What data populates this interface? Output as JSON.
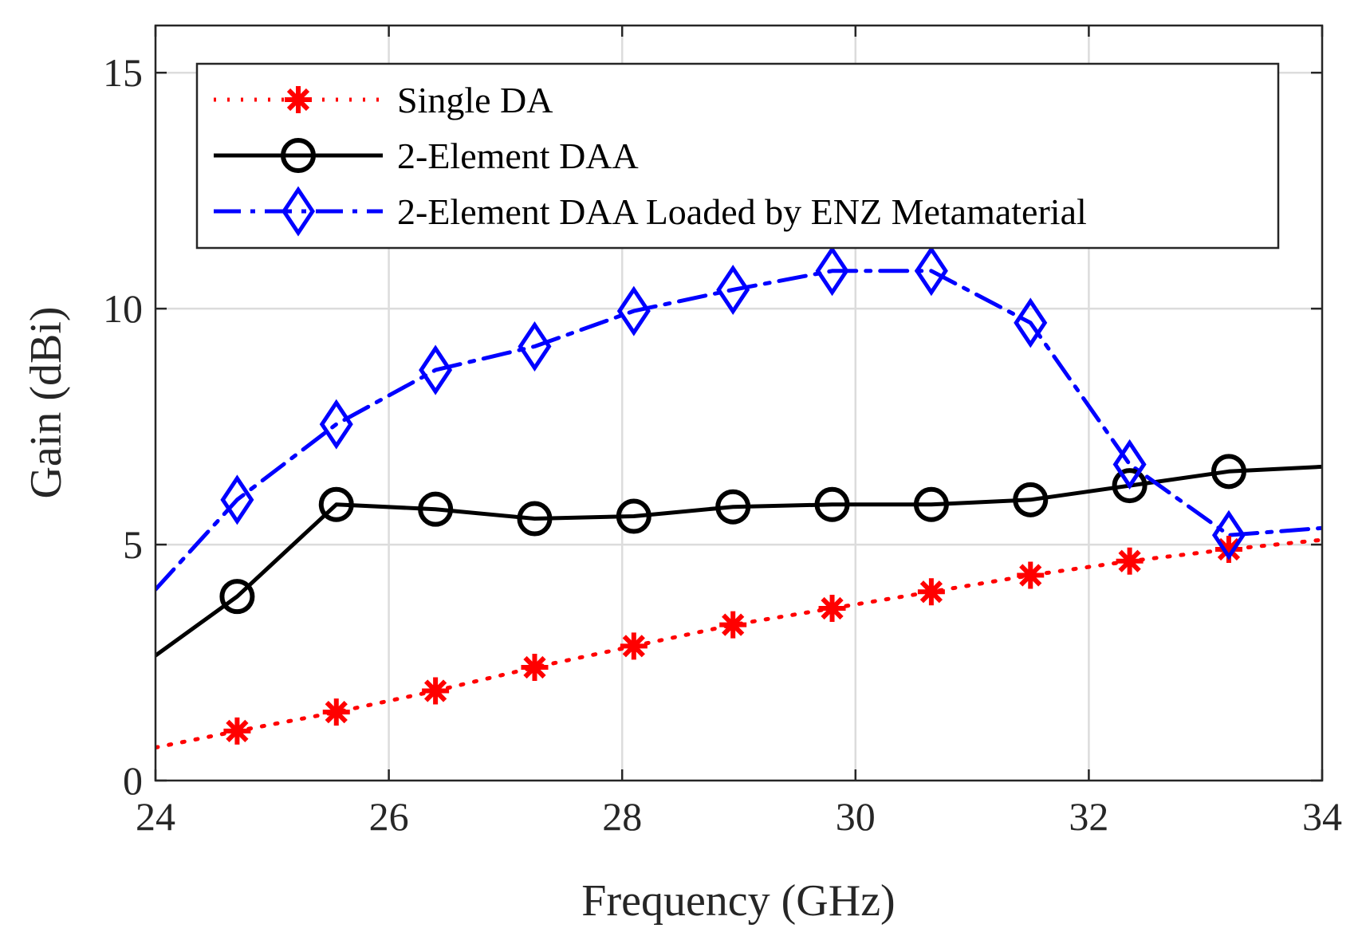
{
  "chart_data": {
    "type": "line",
    "xlabel": "Frequency (GHz)",
    "ylabel": "Gain (dBi)",
    "xlim": [
      24,
      34
    ],
    "ylim": [
      0,
      16
    ],
    "xticks": [
      24,
      26,
      28,
      30,
      32,
      34
    ],
    "yticks": [
      0,
      5,
      10,
      15
    ],
    "grid": true,
    "legend_position": "top",
    "series": [
      {
        "name": "Single DA",
        "color": "#ff0000",
        "line_style": "dotted",
        "marker": "asterisk",
        "x": [
          24,
          24.7,
          25.55,
          26.4,
          27.25,
          28.1,
          28.95,
          29.8,
          30.65,
          31.5,
          32.35,
          33.2,
          34
        ],
        "y": [
          0.7,
          1.05,
          1.45,
          1.9,
          2.4,
          2.85,
          3.3,
          3.65,
          4.0,
          4.35,
          4.65,
          4.9,
          5.1
        ]
      },
      {
        "name": "2-Element DAA",
        "color": "#000000",
        "line_style": "solid",
        "marker": "circle",
        "x": [
          24,
          24.7,
          25.55,
          26.4,
          27.25,
          28.1,
          28.95,
          29.8,
          30.65,
          31.5,
          32.35,
          33.2,
          34
        ],
        "y": [
          2.65,
          3.9,
          5.85,
          5.75,
          5.55,
          5.6,
          5.8,
          5.85,
          5.85,
          5.95,
          6.25,
          6.55,
          6.65
        ]
      },
      {
        "name": "2-Element DAA Loaded by ENZ Metamaterial",
        "color": "#0000ff",
        "line_style": "dashdot",
        "marker": "diamond",
        "x": [
          24,
          24.7,
          25.55,
          26.4,
          27.25,
          28.1,
          28.95,
          29.8,
          30.65,
          31.5,
          32.35,
          33.2,
          34
        ],
        "y": [
          4.05,
          5.95,
          7.55,
          8.7,
          9.2,
          9.95,
          10.4,
          10.8,
          10.8,
          9.7,
          6.7,
          5.2,
          5.35
        ]
      }
    ]
  }
}
